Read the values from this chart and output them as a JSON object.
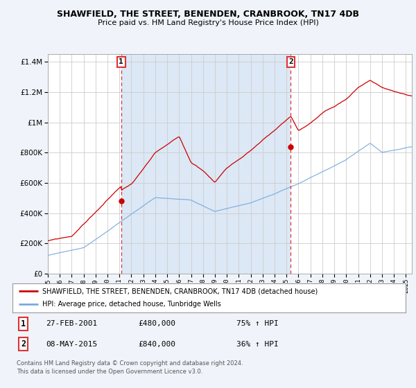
{
  "title": "SHAWFIELD, THE STREET, BENENDEN, CRANBROOK, TN17 4DB",
  "subtitle": "Price paid vs. HM Land Registry's House Price Index (HPI)",
  "legend_line1": "SHAWFIELD, THE STREET, BENENDEN, CRANBROOK, TN17 4DB (detached house)",
  "legend_line2": "HPI: Average price, detached house, Tunbridge Wells",
  "marker1_date": "27-FEB-2001",
  "marker1_price": "£480,000",
  "marker1_pct": "75% ↑ HPI",
  "marker1_year": 2001.15,
  "marker1_value": 480000,
  "marker2_date": "08-MAY-2015",
  "marker2_price": "£840,000",
  "marker2_pct": "36% ↑ HPI",
  "marker2_year": 2015.36,
  "marker2_value": 840000,
  "footer1": "Contains HM Land Registry data © Crown copyright and database right 2024.",
  "footer2": "This data is licensed under the Open Government Licence v3.0.",
  "bg_color": "#f0f4fa",
  "plot_bg_color": "#ffffff",
  "fill_color": "#dce8f5",
  "red_color": "#cc0000",
  "blue_color": "#7aaadd",
  "dashed_color": "#dd3333",
  "ylim_min": 0,
  "ylim_max": 1450000,
  "xlim_start": 1995.0,
  "xlim_end": 2025.5
}
